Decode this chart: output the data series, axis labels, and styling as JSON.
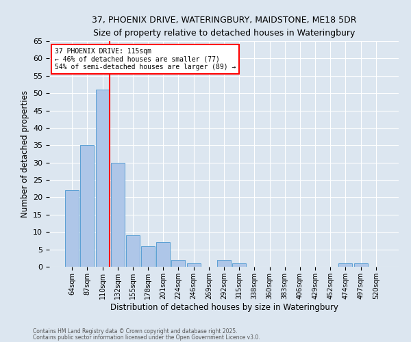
{
  "title_line1": "37, PHOENIX DRIVE, WATERINGBURY, MAIDSTONE, ME18 5DR",
  "title_line2": "Size of property relative to detached houses in Wateringbury",
  "xlabel": "Distribution of detached houses by size in Wateringbury",
  "ylabel": "Number of detached properties",
  "footnote_line1": "Contains HM Land Registry data © Crown copyright and database right 2025.",
  "footnote_line2": "Contains public sector information licensed under the Open Government Licence v3.0.",
  "bin_labels": [
    "64sqm",
    "87sqm",
    "110sqm",
    "132sqm",
    "155sqm",
    "178sqm",
    "201sqm",
    "224sqm",
    "246sqm",
    "269sqm",
    "292sqm",
    "315sqm",
    "338sqm",
    "360sqm",
    "383sqm",
    "406sqm",
    "429sqm",
    "452sqm",
    "474sqm",
    "497sqm",
    "520sqm"
  ],
  "bar_values": [
    22,
    35,
    51,
    30,
    9,
    6,
    7,
    2,
    1,
    0,
    2,
    1,
    0,
    0,
    0,
    0,
    0,
    0,
    1,
    1,
    0
  ],
  "bar_color": "#aec6e8",
  "bar_edge_color": "#5a9fd4",
  "vline_color": "red",
  "vline_x_index": 2,
  "annotation_title": "37 PHOENIX DRIVE: 115sqm",
  "annotation_line2": "← 46% of detached houses are smaller (77)",
  "annotation_line3": "54% of semi-detached houses are larger (89) →",
  "annotation_box_color": "white",
  "annotation_box_edge": "red",
  "ylim": [
    0,
    65
  ],
  "yticks": [
    0,
    5,
    10,
    15,
    20,
    25,
    30,
    35,
    40,
    45,
    50,
    55,
    60,
    65
  ],
  "background_color": "#dce6f0",
  "plot_background_color": "#dce6f0",
  "title_fontsize": 9,
  "subtitle_fontsize": 8.5
}
